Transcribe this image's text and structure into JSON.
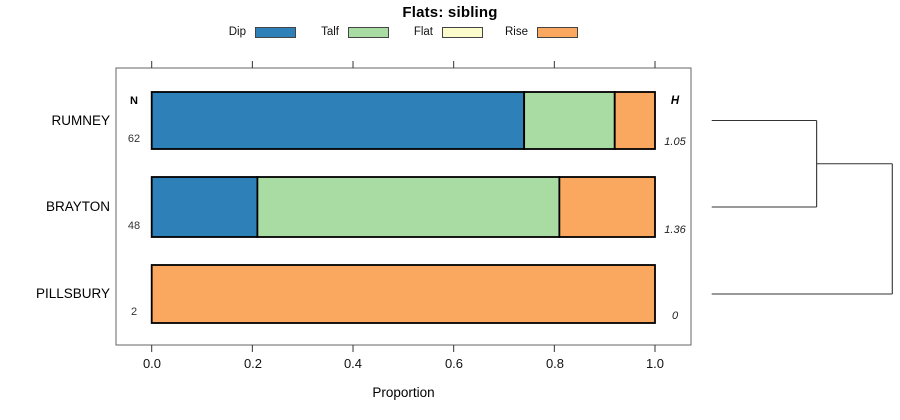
{
  "chart_data": {
    "type": "stacked-bar-horizontal",
    "title": "Flats: sibling",
    "xlabel": "Proportion",
    "x_ticks": [
      "0.0",
      "0.2",
      "0.4",
      "0.6",
      "0.8",
      "1.0"
    ],
    "xlim": [
      0,
      1
    ],
    "grid": false,
    "legend_position": "top",
    "categories": [
      {
        "label": "Dip",
        "color": "#2E80B9"
      },
      {
        "label": "Talf",
        "color": "#A9DCA2"
      },
      {
        "label": "Flat",
        "color": "#FBFBCB"
      },
      {
        "label": "Rise",
        "color": "#FAA75F"
      }
    ],
    "columns": {
      "left_header": "N",
      "right_header": "H"
    },
    "rows": [
      {
        "name": "RUMNEY",
        "n": "62",
        "h": "1.05",
        "proportions": [
          0.74,
          0.18,
          0,
          0.08
        ]
      },
      {
        "name": "BRAYTON",
        "n": "48",
        "h": "1.36",
        "proportions": [
          0.21,
          0.6,
          0,
          0.19
        ]
      },
      {
        "name": "PILLSBURY",
        "n": "2",
        "h": "0",
        "proportions": [
          0,
          0,
          0,
          1
        ]
      }
    ],
    "dendrogram": {
      "leaf_order": [
        "RUMNEY",
        "BRAYTON",
        "PILLSBURY"
      ],
      "merges": [
        {
          "children": [
            {
              "leaf": 0
            },
            {
              "leaf": 1
            }
          ],
          "frac": 0.581
        },
        {
          "children": [
            {
              "cluster": 0
            },
            {
              "leaf": 2
            }
          ],
          "frac": 1.0
        }
      ]
    }
  }
}
